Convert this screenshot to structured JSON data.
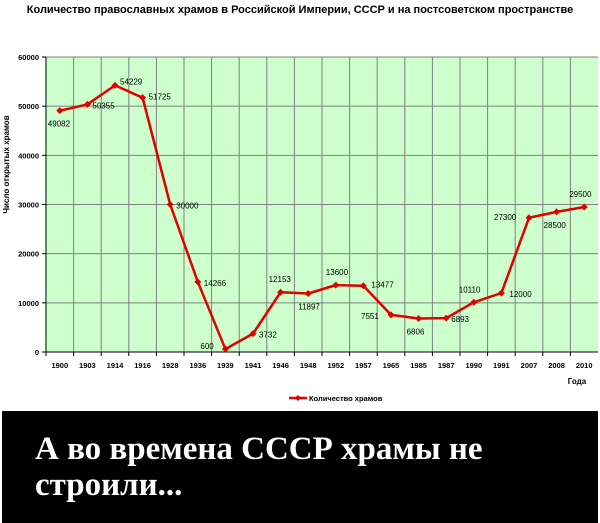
{
  "chart_data": {
    "type": "line",
    "title": "Количество православных храмов в Российской Империи, СССР и на постсоветском пространстве",
    "xlabel": "Года",
    "ylabel": "Число открытых храмов",
    "categories": [
      "1900",
      "1903",
      "1914",
      "1916",
      "1928",
      "1936",
      "1939",
      "1941",
      "1946",
      "1948",
      "1952",
      "1957",
      "1965",
      "1985",
      "1987",
      "1990",
      "1991",
      "2007",
      "2008",
      "2010"
    ],
    "series": [
      {
        "name": "Количество храмов",
        "color": "#e00000",
        "values": [
          49082,
          50355,
          54229,
          51725,
          30000,
          14266,
          600,
          3732,
          12153,
          11897,
          13600,
          13477,
          7551,
          6806,
          6893,
          10110,
          12000,
          27300,
          28500,
          29500
        ]
      }
    ],
    "ylim": [
      0,
      60000
    ],
    "yticks": [
      0,
      10000,
      20000,
      30000,
      40000,
      50000,
      60000
    ],
    "grid": true,
    "legend": "bottom",
    "plot_background": "#ccffcc",
    "gridline_color": "#808080"
  },
  "caption": {
    "text": "А во времена СССР храмы не строили..."
  }
}
